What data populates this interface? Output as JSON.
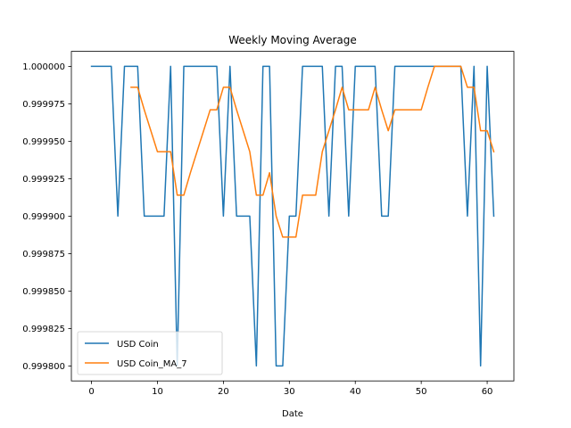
{
  "chart_data": {
    "type": "line",
    "title": "Weekly Moving Average",
    "xlabel": "Date",
    "ylabel": "",
    "xlim": [
      -3.05,
      64.05
    ],
    "ylim": [
      0.99979,
      1.00001
    ],
    "xticks": [
      0,
      10,
      20,
      30,
      40,
      50,
      60
    ],
    "yticks": [
      0.9998,
      0.999825,
      0.99985,
      0.999875,
      0.9999,
      0.999925,
      0.99995,
      0.999975,
      1.0
    ],
    "ytick_labels": [
      "0.999800",
      "0.999825",
      "0.999850",
      "0.999875",
      "0.999900",
      "0.999925",
      "0.999950",
      "0.999975",
      "1.000000"
    ],
    "legend_position": "lower-left",
    "grid": false,
    "series": [
      {
        "name": "USD Coin",
        "color": "#1f77b4",
        "x": [
          0,
          1,
          2,
          3,
          4,
          5,
          6,
          7,
          8,
          9,
          10,
          11,
          12,
          13,
          14,
          15,
          16,
          17,
          18,
          19,
          20,
          21,
          22,
          23,
          24,
          25,
          26,
          27,
          28,
          29,
          30,
          31,
          32,
          33,
          34,
          35,
          36,
          37,
          38,
          39,
          40,
          41,
          42,
          43,
          44,
          45,
          46,
          47,
          48,
          49,
          50,
          51,
          52,
          53,
          54,
          55,
          56,
          57,
          58,
          59,
          60,
          61
        ],
        "values": [
          1.0,
          1.0,
          1.0,
          1.0,
          0.9999,
          1.0,
          1.0,
          1.0,
          0.9999,
          0.9999,
          0.9999,
          0.9999,
          1.0,
          0.9998,
          1.0,
          1.0,
          1.0,
          1.0,
          1.0,
          1.0,
          0.9999,
          1.0,
          0.9999,
          0.9999,
          0.9999,
          0.9998,
          1.0,
          1.0,
          0.9998,
          0.9998,
          0.9999,
          0.9999,
          1.0,
          1.0,
          1.0,
          1.0,
          0.9999,
          1.0,
          1.0,
          0.9999,
          1.0,
          1.0,
          1.0,
          1.0,
          0.9999,
          0.9999,
          1.0,
          1.0,
          1.0,
          1.0,
          1.0,
          1.0,
          1.0,
          1.0,
          1.0,
          1.0,
          1.0,
          0.9999,
          1.0,
          0.9998,
          1.0,
          0.9999
        ]
      },
      {
        "name": "USD Coin_MA_7",
        "color": "#ff7f0e",
        "x": [
          6,
          7,
          8,
          9,
          10,
          11,
          12,
          13,
          14,
          15,
          16,
          17,
          18,
          19,
          20,
          21,
          22,
          23,
          24,
          25,
          26,
          27,
          28,
          29,
          30,
          31,
          32,
          33,
          34,
          35,
          36,
          37,
          38,
          39,
          40,
          41,
          42,
          43,
          44,
          45,
          46,
          47,
          48,
          49,
          50,
          51,
          52,
          53,
          54,
          55,
          56,
          57,
          58,
          59,
          60,
          61
        ],
        "values": [
          0.999986,
          0.999986,
          0.999971,
          0.999957,
          0.999943,
          0.999943,
          0.999943,
          0.999914,
          0.999914,
          0.999929,
          0.999943,
          0.999957,
          0.999971,
          0.999971,
          0.999986,
          0.999986,
          0.999971,
          0.999957,
          0.999943,
          0.999914,
          0.999914,
          0.999929,
          0.9999,
          0.999886,
          0.999886,
          0.999886,
          0.999914,
          0.999914,
          0.999914,
          0.999943,
          0.999957,
          0.999971,
          0.999986,
          0.999971,
          0.999971,
          0.999971,
          0.999971,
          0.999986,
          0.999971,
          0.999957,
          0.999971,
          0.999971,
          0.999971,
          0.999971,
          0.999971,
          0.999986,
          1.0,
          1.0,
          1.0,
          1.0,
          1.0,
          0.999986,
          0.999986,
          0.999957,
          0.999957,
          0.999943
        ]
      }
    ]
  }
}
